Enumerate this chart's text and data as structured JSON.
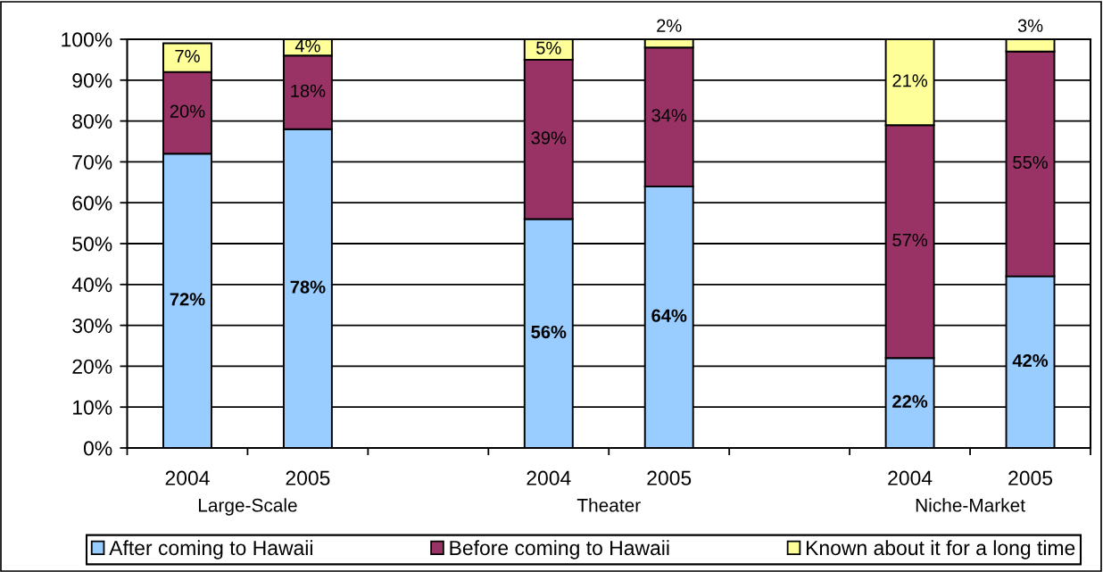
{
  "chart_data": {
    "type": "bar",
    "stacked": true,
    "categories": [
      "2004",
      "2005",
      null,
      "2004",
      "2005",
      null,
      "2004",
      "2005"
    ],
    "series": [
      {
        "name": "After coming to Hawaii",
        "color": "#99ccff",
        "values": [
          72,
          78,
          null,
          56,
          64,
          null,
          22,
          42
        ],
        "value_labels": [
          "72%",
          "78%",
          null,
          "56%",
          "64%",
          null,
          "22%",
          "42%"
        ]
      },
      {
        "name": "Before coming to Hawaii",
        "color": "#993366",
        "values": [
          20,
          18,
          null,
          39,
          34,
          null,
          57,
          55
        ],
        "value_labels": [
          "20%",
          "18%",
          null,
          "39%",
          "34%",
          null,
          "57%",
          "55%"
        ]
      },
      {
        "name": "Known about it for a long time",
        "color": "#ffff99",
        "values": [
          7,
          4,
          null,
          5,
          2,
          null,
          21,
          3
        ],
        "value_labels": [
          "7%",
          "4%",
          null,
          "5%",
          "2%",
          null,
          "21%",
          "3%"
        ]
      }
    ],
    "ylim": [
      0,
      100
    ],
    "yticks": [
      {
        "value": 0,
        "label": "0%"
      },
      {
        "value": 10,
        "label": "10%"
      },
      {
        "value": 20,
        "label": "20%"
      },
      {
        "value": 30,
        "label": "30%"
      },
      {
        "value": 40,
        "label": "40%"
      },
      {
        "value": 50,
        "label": "50%"
      },
      {
        "value": 60,
        "label": "60%"
      },
      {
        "value": 70,
        "label": "70%"
      },
      {
        "value": 80,
        "label": "80%"
      },
      {
        "value": 90,
        "label": "90%"
      },
      {
        "value": 100,
        "label": "100%"
      }
    ],
    "grid": "y",
    "legend": "bottom",
    "annotations": [
      "Large-Scale",
      "Theater",
      "Niche-Market"
    ]
  }
}
